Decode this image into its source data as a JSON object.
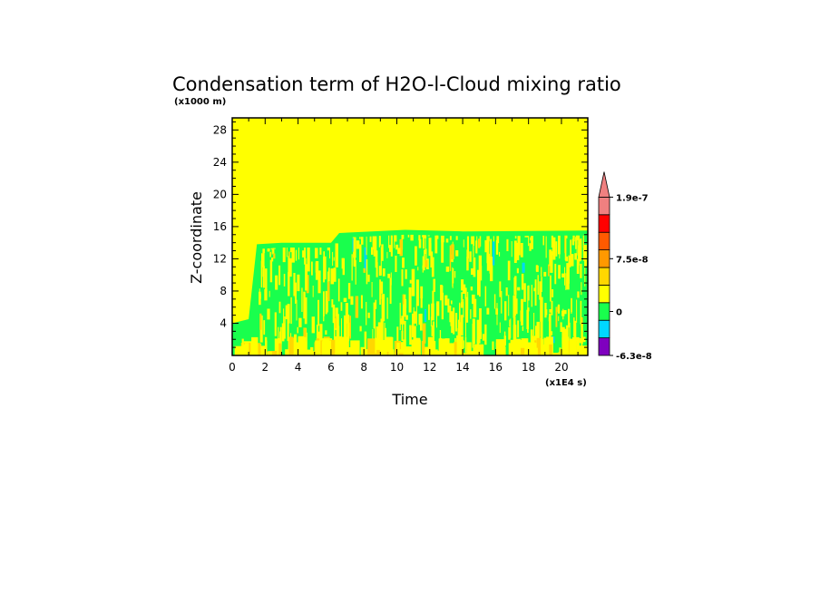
{
  "chart_data": {
    "type": "heatmap",
    "title": "Condensation term of H2O-l-Cloud mixing ratio",
    "xlabel": "Time",
    "ylabel": "Z-coordinate",
    "x_unit": "(x1E4 s)",
    "y_unit": "(x1000 m)",
    "xlim": [
      0,
      21.6
    ],
    "ylim": [
      0,
      29.5
    ],
    "x_ticks": [
      0,
      2,
      4,
      6,
      8,
      10,
      12,
      14,
      16,
      18,
      20
    ],
    "y_ticks": [
      4,
      8,
      12,
      16,
      20,
      24,
      28
    ],
    "background_level_color": "#ffff00",
    "cloud_top": [
      {
        "x": 0.0,
        "z": 4.0
      },
      {
        "x": 1.0,
        "z": 4.5
      },
      {
        "x": 1.5,
        "z": 13.8
      },
      {
        "x": 3.0,
        "z": 14.0
      },
      {
        "x": 6.0,
        "z": 14.0
      },
      {
        "x": 6.5,
        "z": 15.2
      },
      {
        "x": 10.5,
        "z": 15.6
      },
      {
        "x": 14.0,
        "z": 15.4
      },
      {
        "x": 21.6,
        "z": 15.5
      }
    ],
    "colorbar": {
      "colors": [
        "#7f00bf",
        "#00d8ff",
        "#19ff4d",
        "#ffff00",
        "#ffd700",
        "#ff9900",
        "#ff5a00",
        "#ff0000",
        "#f08080"
      ],
      "labels": [
        {
          "text": "-6.3e-8",
          "level": 0
        },
        {
          "text": "0",
          "level": 2.5
        },
        {
          "text": "7.5e-8",
          "level": 5.5
        },
        {
          "text": "1.9e-7",
          "level": 9
        }
      ]
    }
  }
}
